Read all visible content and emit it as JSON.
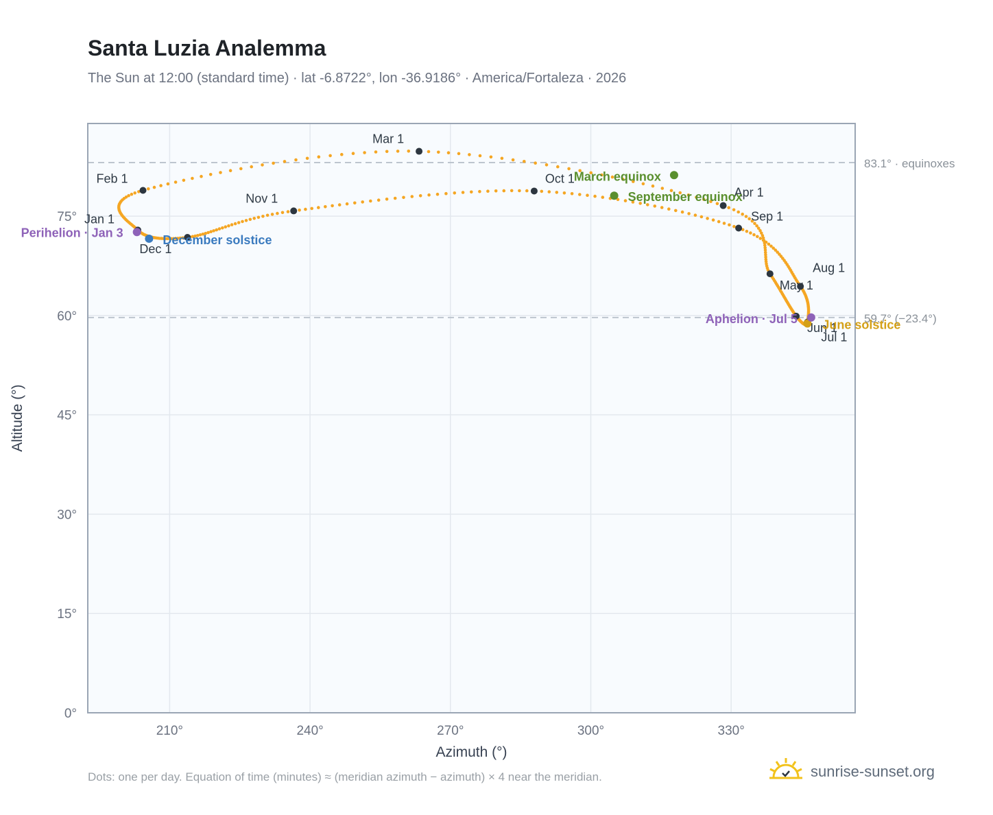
{
  "title": "Santa Luzia Analemma",
  "subtitle": "The Sun at 12:00 (standard time) · lat -6.8722°, lon -36.9186° · America/Fortaleza · 2026",
  "footnote": "Dots: one per day. Equation of time (minutes) ≈ (meridian azimuth − azimuth) × 4 near the meridian.",
  "brand": {
    "text": "sunrise-sunset.org",
    "icon": "sun-logo-icon"
  },
  "colors": {
    "curve": "#f5a623",
    "month_marker": "#2d3640",
    "equinox": "#5a8f2e",
    "solstice_dec": "#3b7bbf",
    "solstice_jun": "#d4a017",
    "apsis": "#8e62b8",
    "plot_bg": "#f8fbfe",
    "grid": "#e3e8ee",
    "frame": "#9aa5b4",
    "ref_line": "#b9c2cc"
  },
  "chart_data": {
    "type": "scatter",
    "title": "Santa Luzia Analemma",
    "xlabel": "Azimuth (°)",
    "ylabel": "Altitude (°)",
    "xlim": [
      192.5,
      356.5
    ],
    "ylim": [
      0,
      89
    ],
    "x_ticks": [
      210,
      240,
      270,
      300,
      330
    ],
    "x_tick_labels": [
      "210°",
      "240°",
      "270°",
      "300°",
      "330°"
    ],
    "y_ticks": [
      0,
      15,
      30,
      45,
      60,
      75
    ],
    "y_tick_labels": [
      "0°",
      "15°",
      "30°",
      "45°",
      "60°",
      "75°"
    ],
    "grid": true,
    "reference_lines": [
      {
        "altitude": 83.1,
        "label": "83.1° · equinoxes"
      },
      {
        "altitude": 59.7,
        "label": "59.7° (−23.4°)"
      }
    ],
    "month_markers": [
      {
        "label": "Jan 1",
        "az": 203.2,
        "alt": 72.9
      },
      {
        "label": "Feb 1",
        "az": 204.3,
        "alt": 78.9
      },
      {
        "label": "Mar 1",
        "az": 263.3,
        "alt": 84.8
      },
      {
        "label": "Apr 1",
        "az": 328.3,
        "alt": 76.6
      },
      {
        "label": "May 1",
        "az": 338.3,
        "alt": 66.3
      },
      {
        "label": "Jun 1",
        "az": 343.9,
        "alt": 59.9
      },
      {
        "label": "Jul 1",
        "az": 346.3,
        "alt": 59.0
      },
      {
        "label": "Aug 1",
        "az": 344.8,
        "alt": 64.4
      },
      {
        "label": "Sep 1",
        "az": 331.6,
        "alt": 73.2
      },
      {
        "label": "Oct 1",
        "az": 287.9,
        "alt": 78.8
      },
      {
        "label": "Nov 1",
        "az": 236.5,
        "alt": 75.8
      },
      {
        "label": "Dec 1",
        "az": 213.8,
        "alt": 71.8
      }
    ],
    "events": [
      {
        "label": "March equinox",
        "az": 317.8,
        "alt": 81.2
      },
      {
        "label": "September equinox",
        "az": 305.0,
        "alt": 78.1
      },
      {
        "label": "June solstice",
        "az": 346.3,
        "alt": 58.8
      },
      {
        "label": "December solstice",
        "az": 205.6,
        "alt": 71.6
      },
      {
        "label": "Perihelion · Jan 3",
        "az": 203.0,
        "alt": 72.6
      },
      {
        "label": "Aphelion · Jul 5",
        "az": 347.1,
        "alt": 59.7
      }
    ]
  }
}
